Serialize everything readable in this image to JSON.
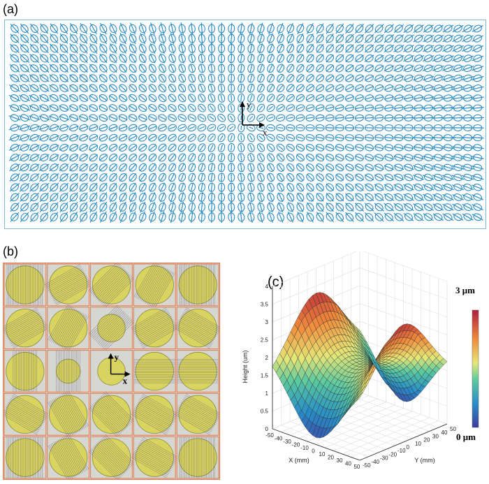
{
  "labels": {
    "a": "(a)",
    "b": "(b)",
    "c": "(c)"
  },
  "panel_a": {
    "axis_x": "x",
    "axis_y": "y",
    "color": "#2b8cc4"
  },
  "panel_b": {
    "axis_x": "x",
    "axis_y": "y",
    "grid_color": "#e07a4a",
    "circle_color": "#d9d33a"
  },
  "panel_c": {
    "zlabel": "Height (um)",
    "xlabel": "X (mm)",
    "ylabel": "Y (mm)",
    "z_ticks": [
      "0",
      "0.5",
      "1",
      "1.5",
      "2",
      "2.5",
      "3",
      "3.5",
      "4"
    ],
    "x_ticks": [
      "-50",
      "-40",
      "-30",
      "-20",
      "-10",
      "0",
      "10",
      "20",
      "30",
      "40",
      "50"
    ],
    "y_ticks": [
      "-50",
      "-40",
      "-30",
      "-20",
      "-10",
      "0",
      "10",
      "20",
      "30",
      "40",
      "50"
    ],
    "colorbar_max": "3 μm",
    "colorbar_min": "0 μm"
  }
}
